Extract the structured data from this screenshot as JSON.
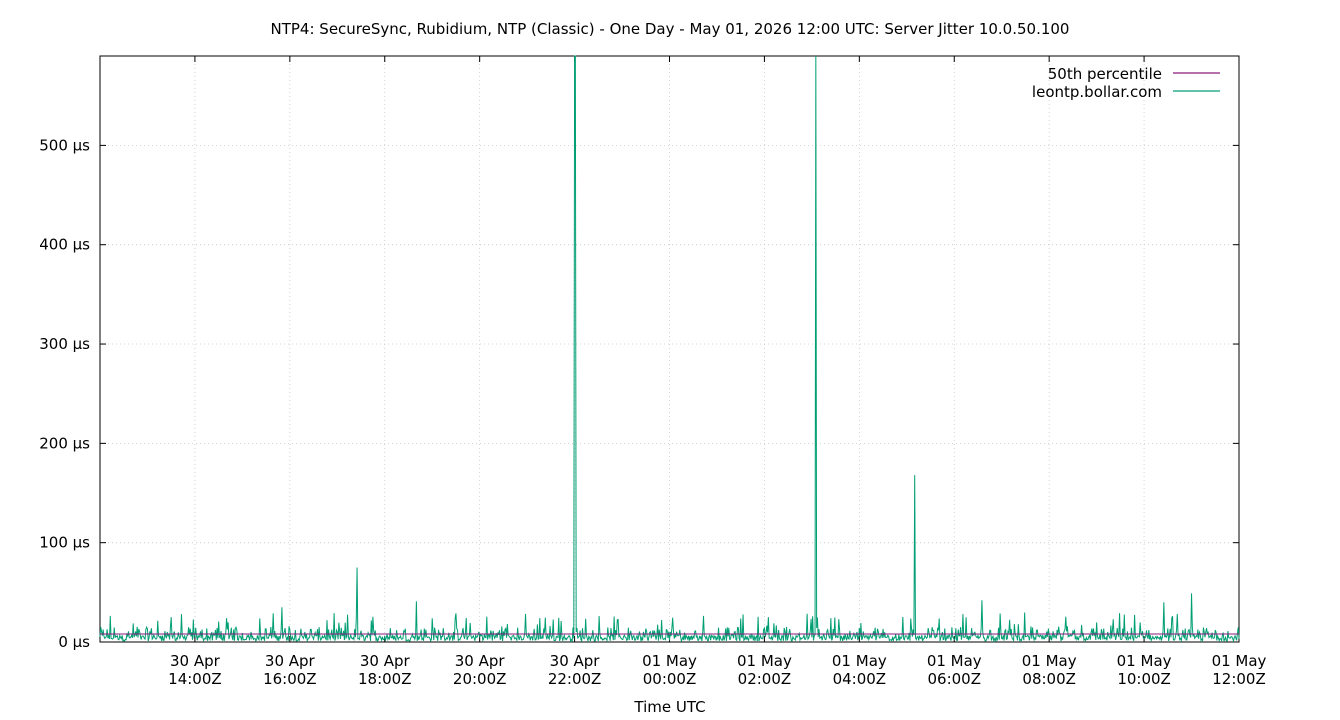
{
  "chart_data": {
    "type": "line",
    "title": "NTP4: SecureSync, Rubidium, NTP (Classic) - One Day - May 01, 2026 12:00 UTC: Server Jitter 10.0.50.100",
    "xlabel": "Time UTC",
    "ylabel": "",
    "x_range": [
      "2026-04-30T12:00Z",
      "2026-05-01T12:00Z"
    ],
    "ylim": [
      0,
      590
    ],
    "y_unit": "µs",
    "grid": true,
    "legend_position": "top-right",
    "y_ticks": [
      {
        "value": 0,
        "label": "0 µs"
      },
      {
        "value": 100,
        "label": "100 µs"
      },
      {
        "value": 200,
        "label": "200 µs"
      },
      {
        "value": 300,
        "label": "300 µs"
      },
      {
        "value": 400,
        "label": "400 µs"
      },
      {
        "value": 500,
        "label": "500 µs"
      }
    ],
    "x_ticks": [
      {
        "time": "2026-04-30T14:00Z",
        "line1": "30 Apr",
        "line2": "14:00Z"
      },
      {
        "time": "2026-04-30T16:00Z",
        "line1": "30 Apr",
        "line2": "16:00Z"
      },
      {
        "time": "2026-04-30T18:00Z",
        "line1": "30 Apr",
        "line2": "18:00Z"
      },
      {
        "time": "2026-04-30T20:00Z",
        "line1": "30 Apr",
        "line2": "20:00Z"
      },
      {
        "time": "2026-04-30T22:00Z",
        "line1": "30 Apr",
        "line2": "22:00Z"
      },
      {
        "time": "2026-05-01T00:00Z",
        "line1": "01 May",
        "line2": "00:00Z"
      },
      {
        "time": "2026-05-01T02:00Z",
        "line1": "01 May",
        "line2": "02:00Z"
      },
      {
        "time": "2026-05-01T04:00Z",
        "line1": "01 May",
        "line2": "04:00Z"
      },
      {
        "time": "2026-05-01T06:00Z",
        "line1": "01 May",
        "line2": "06:00Z"
      },
      {
        "time": "2026-05-01T08:00Z",
        "line1": "01 May",
        "line2": "08:00Z"
      },
      {
        "time": "2026-05-01T10:00Z",
        "line1": "01 May",
        "line2": "10:00Z"
      },
      {
        "time": "2026-05-01T12:00Z",
        "line1": "01 May",
        "line2": "12:00Z"
      }
    ],
    "series": [
      {
        "name": "50th percentile",
        "color": "#8b1a7e",
        "style": "horizontal",
        "value": 8
      },
      {
        "name": "leontp.bollar.com",
        "color": "#009e73",
        "style": "noisy",
        "baseline_range": [
          1,
          30
        ],
        "spikes": [
          {
            "time": "2026-04-30T13:30Z",
            "value": 25
          },
          {
            "time": "2026-04-30T15:50Z",
            "value": 35
          },
          {
            "time": "2026-04-30T17:25Z",
            "value": 75
          },
          {
            "time": "2026-04-30T18:40Z",
            "value": 41
          },
          {
            "time": "2026-04-30T22:00Z",
            "value": 590
          },
          {
            "time": "2026-04-30T22:01Z",
            "value": 590
          },
          {
            "time": "2026-05-01T03:05Z",
            "value": 590
          },
          {
            "time": "2026-05-01T05:10Z",
            "value": 168
          },
          {
            "time": "2026-05-01T06:35Z",
            "value": 42
          },
          {
            "time": "2026-05-01T10:25Z",
            "value": 40
          },
          {
            "time": "2026-05-01T11:00Z",
            "value": 49
          }
        ]
      }
    ]
  }
}
